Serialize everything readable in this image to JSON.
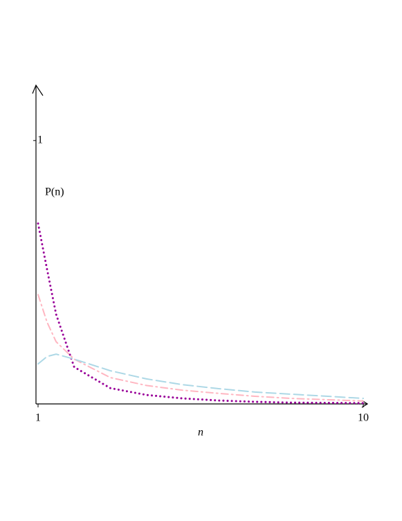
{
  "chart_data": {
    "type": "line",
    "xlabel": "n",
    "ylabel": "P(n)",
    "x": [
      1,
      1.25,
      1.5,
      2,
      3,
      4,
      5,
      6,
      7,
      8,
      10
    ],
    "series": [
      {
        "color": "#990099",
        "style": "dotted",
        "values": [
          0.685,
          0.51,
          0.34,
          0.14,
          0.06,
          0.034,
          0.021,
          0.013,
          0.008,
          0.005,
          0.003
        ]
      },
      {
        "color": "#ffb6c1",
        "style": "dashdot",
        "values": [
          0.415,
          0.31,
          0.236,
          0.17,
          0.1,
          0.07,
          0.052,
          0.04,
          0.029,
          0.021,
          0.011
        ]
      },
      {
        "color": "#add8e6",
        "style": "dashed",
        "values": [
          0.152,
          0.18,
          0.189,
          0.17,
          0.126,
          0.095,
          0.073,
          0.058,
          0.045,
          0.037,
          0.021
        ]
      }
    ],
    "xlim": [
      1,
      10
    ],
    "ylim": [
      0,
      1.2
    ],
    "xticks": [
      1,
      10
    ],
    "yticks": [
      1
    ]
  }
}
